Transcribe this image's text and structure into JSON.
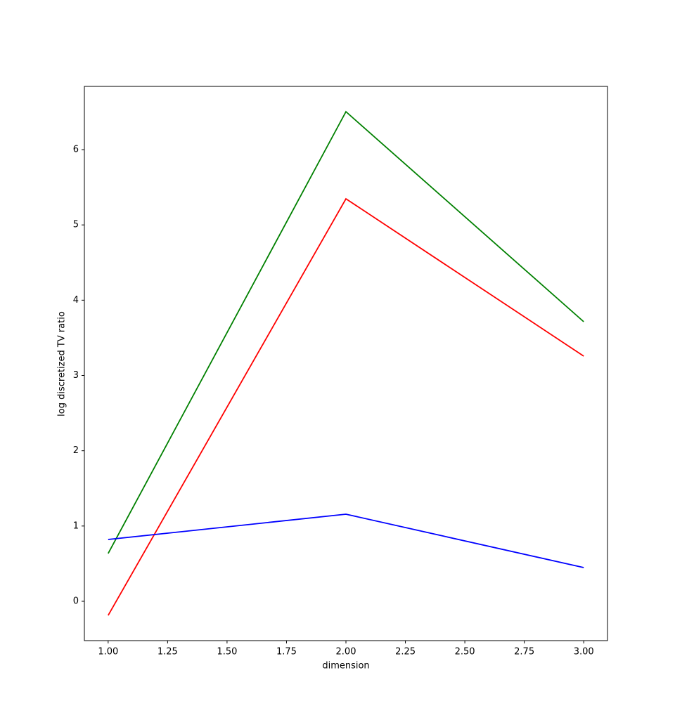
{
  "chart_data": {
    "type": "line",
    "xlabel": "dimension",
    "ylabel": "log discretized TV ratio",
    "x": [
      1,
      2,
      3
    ],
    "series": [
      {
        "color": "#008000",
        "values": [
          0.635,
          6.504,
          3.714
        ]
      },
      {
        "color": "#ff0000",
        "values": [
          -0.187,
          5.347,
          3.257
        ]
      },
      {
        "color": "#0000ff",
        "values": [
          0.821,
          1.157,
          0.448
        ]
      }
    ],
    "xlim": [
      0.9,
      3.1
    ],
    "xticks": [
      {
        "value": 1,
        "label": "1.00"
      },
      {
        "value": 1.25,
        "label": "1.25"
      },
      {
        "value": 1.5,
        "label": "1.50"
      },
      {
        "value": 1.75,
        "label": "1.75"
      },
      {
        "value": 2,
        "label": "2.00"
      },
      {
        "value": 2.25,
        "label": "2.25"
      },
      {
        "value": 2.5,
        "label": "2.50"
      },
      {
        "value": 2.75,
        "label": "2.75"
      },
      {
        "value": 3,
        "label": "3.00"
      }
    ],
    "ylim": [
      -0.5225,
      6.84
    ],
    "yticks": [
      0,
      1,
      2,
      3,
      4,
      5,
      6
    ],
    "grid": false
  }
}
